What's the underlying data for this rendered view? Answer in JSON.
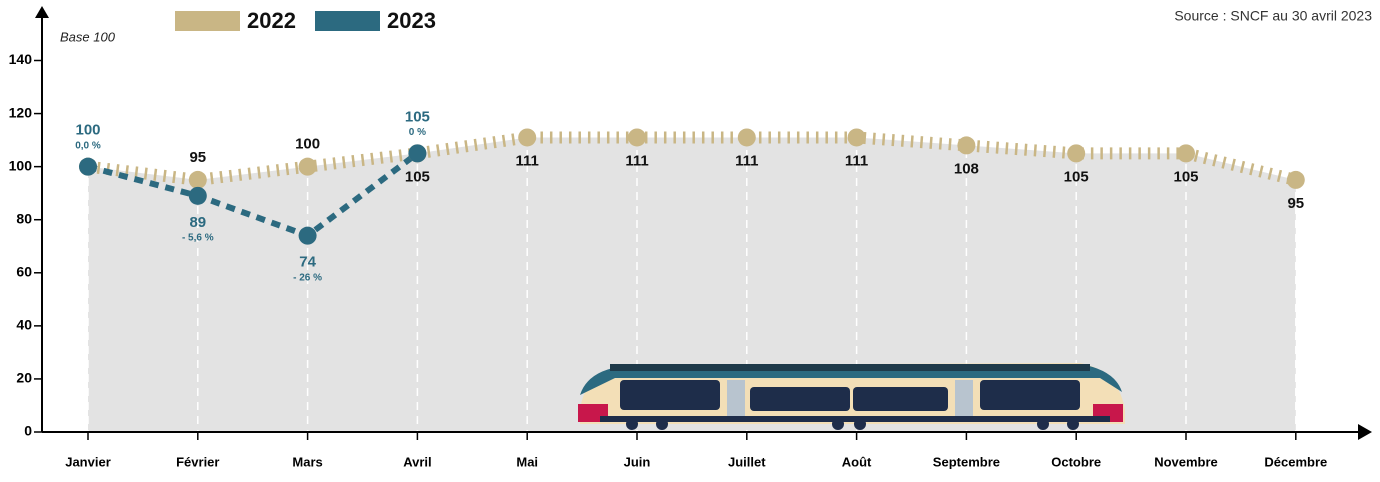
{
  "chart_data": {
    "type": "line",
    "source": "Source : SNCF au 30 avril 2023",
    "y_label": "Base 100",
    "categories": [
      "Janvier",
      "Février",
      "Mars",
      "Avril",
      "Mai",
      "Juin",
      "Juillet",
      "Août",
      "Septembre",
      "Octobre",
      "Novembre",
      "Décembre"
    ],
    "series": [
      {
        "name": "2022",
        "color": "#c9b685",
        "values": [
          100,
          95,
          100,
          105,
          111,
          111,
          111,
          111,
          108,
          105,
          105,
          95
        ],
        "value_labels": [
          null,
          "95",
          "100",
          "105",
          "111",
          "111",
          "111",
          "111",
          "108",
          "105",
          "105",
          "95"
        ]
      },
      {
        "name": "2023",
        "color": "#2c6a80",
        "values": [
          100,
          89,
          74,
          105,
          null,
          null,
          null,
          null,
          null,
          null,
          null,
          null
        ],
        "changes": [
          "0,0 %",
          "- 5,6 %",
          "- 26 %",
          "0 %",
          null,
          null,
          null,
          null,
          null,
          null,
          null,
          null
        ]
      }
    ],
    "ylim": [
      0,
      140
    ],
    "yticks": [
      0,
      20,
      40,
      60,
      80,
      100,
      120,
      140
    ],
    "grid": false
  }
}
